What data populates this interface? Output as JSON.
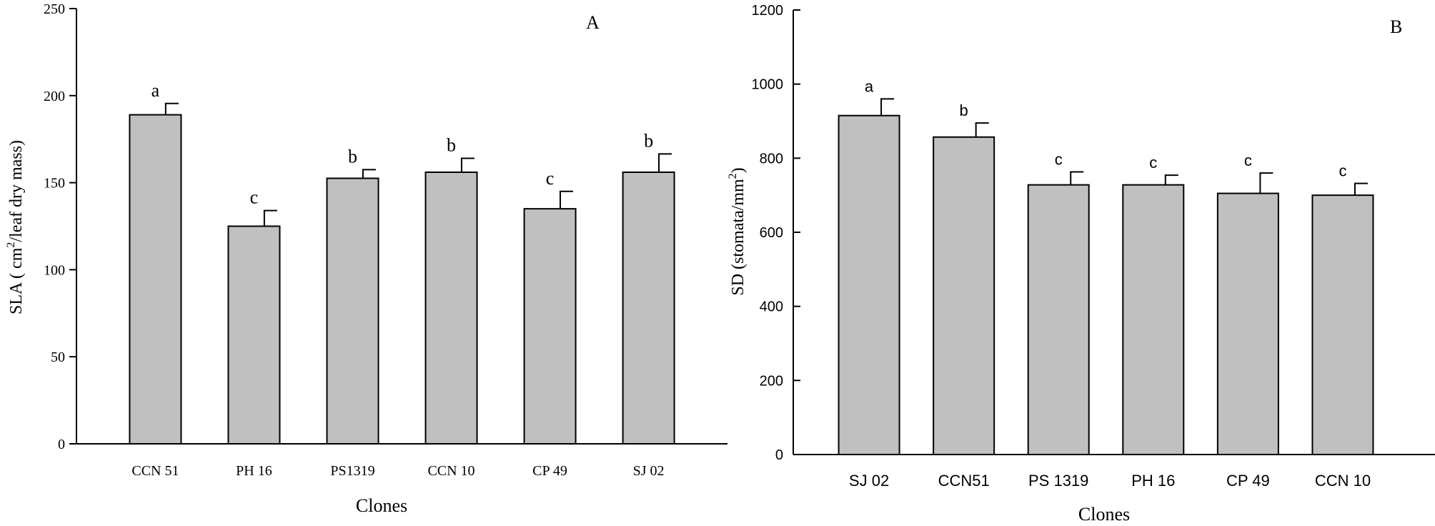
{
  "chart_data": [
    {
      "type": "bar",
      "panel_label": "A",
      "categories": [
        "CCN 51",
        "PH 16",
        "PS1319",
        "CCN 10",
        "CP 49",
        "SJ 02"
      ],
      "values": [
        189,
        125,
        152.5,
        156,
        135,
        156
      ],
      "errors": [
        6.5,
        9,
        5,
        8,
        10,
        10.5
      ],
      "letters": [
        "a",
        "c",
        "b",
        "b",
        "c",
        "b"
      ],
      "xlabel": "Clones",
      "ylabel": "SLA ( cm",
      "ylabel_sup": "2",
      "ylabel_tail": "/leaf dry mass)",
      "ylim": [
        0,
        250
      ],
      "yticks": [
        "0",
        "50",
        "100",
        "150",
        "200",
        "250"
      ],
      "grid": false,
      "bar_color": "#c0c0c0"
    },
    {
      "type": "bar",
      "panel_label": "B",
      "categories": [
        "SJ 02",
        "CCN51",
        "PS 1319",
        "PH 16",
        "CP 49",
        "CCN 10"
      ],
      "values": [
        915,
        857,
        728,
        728,
        705,
        700
      ],
      "errors": [
        45,
        38,
        35,
        26,
        55,
        32
      ],
      "letters": [
        "a",
        "b",
        "c",
        "c",
        "c",
        "c"
      ],
      "xlabel": "Clones",
      "ylabel": "SD  (stomata/mm",
      "ylabel_sup": "2",
      "ylabel_tail": ")",
      "ylim": [
        0,
        1200
      ],
      "yticks": [
        "0",
        "200",
        "400",
        "600",
        "800",
        "1000",
        "1200"
      ],
      "grid": false,
      "bar_color": "#c0c0c0"
    }
  ]
}
